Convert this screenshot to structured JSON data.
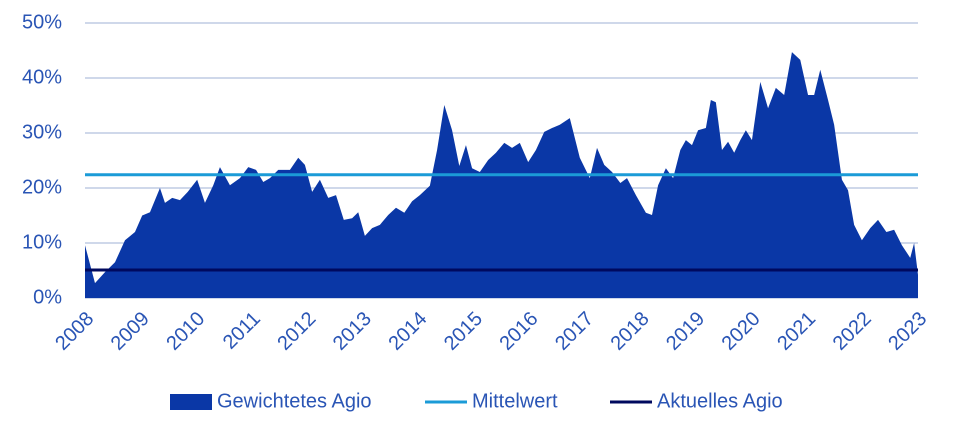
{
  "chart_data": {
    "type": "area",
    "x": [
      2008,
      2008.18,
      2008.36,
      2008.54,
      2008.72,
      2008.9,
      2009.03,
      2009.17,
      2009.35,
      2009.44,
      2009.57,
      2009.71,
      2009.85,
      2010.02,
      2010.16,
      2010.31,
      2010.43,
      2010.61,
      2010.79,
      2010.94,
      2011.08,
      2011.21,
      2011.33,
      2011.48,
      2011.69,
      2011.84,
      2011.96,
      2012.09,
      2012.23,
      2012.38,
      2012.52,
      2012.66,
      2012.81,
      2012.92,
      2013.04,
      2013.17,
      2013.31,
      2013.46,
      2013.6,
      2013.75,
      2013.89,
      2014.03,
      2014.21,
      2014.34,
      2014.47,
      2014.61,
      2014.74,
      2014.86,
      2014.97,
      2015.11,
      2015.26,
      2015.4,
      2015.55,
      2015.69,
      2015.83,
      2015.98,
      2016.12,
      2016.27,
      2016.41,
      2016.55,
      2016.73,
      2016.91,
      2017.09,
      2017.22,
      2017.35,
      2017.49,
      2017.64,
      2017.76,
      2017.92,
      2018.1,
      2018.21,
      2018.32,
      2018.46,
      2018.59,
      2018.72,
      2018.82,
      2018.93,
      2019.04,
      2019.18,
      2019.27,
      2019.36,
      2019.47,
      2019.58,
      2019.69,
      2019.8,
      2019.9,
      2020.01,
      2020.16,
      2020.3,
      2020.44,
      2020.59,
      2020.73,
      2020.88,
      2021.02,
      2021.13,
      2021.24,
      2021.38,
      2021.49,
      2021.63,
      2021.74,
      2021.85,
      2021.99,
      2022.14,
      2022.28,
      2022.43,
      2022.57,
      2022.71,
      2022.86,
      2022.93,
      2023
    ],
    "series": [
      {
        "name": "Gewichtetes Agio",
        "color": "#0a37a6",
        "values": [
          9.6,
          2.7,
          4.7,
          6.5,
          10.5,
          12,
          15,
          15.6,
          20,
          17.3,
          18.2,
          17.8,
          19.3,
          21.5,
          17.3,
          20.5,
          23.8,
          20.5,
          21.8,
          23.8,
          23.3,
          21.1,
          21.8,
          23.3,
          23.3,
          25.5,
          24.2,
          19.3,
          21.5,
          18.2,
          18.7,
          14.2,
          14.5,
          15.6,
          11.3,
          12.7,
          13.3,
          15.1,
          16.4,
          15.5,
          17.6,
          18.7,
          20.4,
          26.9,
          35.1,
          30.5,
          24,
          27.8,
          23.6,
          22.9,
          25.1,
          26.4,
          28.2,
          27.3,
          28.2,
          24.7,
          26.9,
          30.2,
          30.9,
          31.5,
          32.7,
          25.5,
          21.8,
          27.3,
          24.2,
          22.9,
          20.9,
          21.8,
          18.7,
          15.5,
          15.1,
          20.5,
          23.6,
          21.8,
          26.9,
          28.7,
          27.8,
          30.5,
          30.9,
          36,
          35.6,
          26.9,
          28.4,
          26.4,
          28.7,
          30.5,
          28.7,
          39.3,
          34.5,
          38.2,
          36.9,
          44.7,
          43.3,
          36.9,
          36.9,
          41.5,
          36,
          31.5,
          21.5,
          19.6,
          13.3,
          10.5,
          12.7,
          14.2,
          12,
          12.4,
          9.6,
          7.3,
          10,
          4.2
        ]
      }
    ],
    "hlines": [
      {
        "name": "Mittelwert",
        "color": "#1b9bd7",
        "value": 22.4
      },
      {
        "name": "Aktuelles Agio",
        "color": "#00095e",
        "value": 5.1
      }
    ],
    "xlim": [
      2008,
      2023
    ],
    "xticks": [
      2008,
      2009,
      2010,
      2011,
      2012,
      2013,
      2014,
      2015,
      2016,
      2017,
      2018,
      2019,
      2020,
      2021,
      2022,
      2023
    ],
    "ylim": [
      0,
      50
    ],
    "yticks": [
      {
        "value": 0,
        "label": "0%"
      },
      {
        "value": 10,
        "label": "10%"
      },
      {
        "value": 20,
        "label": "20%"
      },
      {
        "value": 30,
        "label": "30%"
      },
      {
        "value": 40,
        "label": "40%"
      },
      {
        "value": 50,
        "label": "50%"
      }
    ],
    "grid": true,
    "legend": "bottom"
  }
}
